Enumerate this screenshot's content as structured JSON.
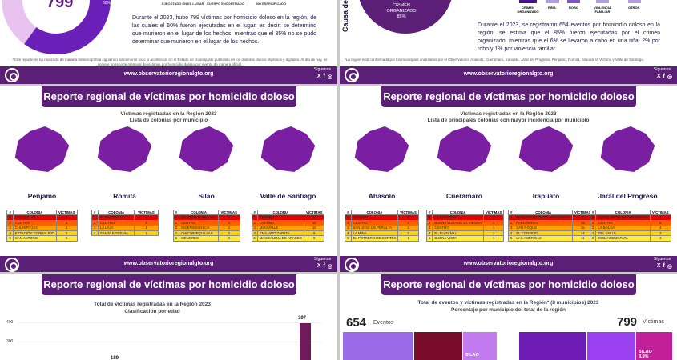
{
  "footer": {
    "url": "www.observatorioregionalgto.org",
    "follow": "Síguenos",
    "social": [
      "X",
      "f",
      "◎"
    ]
  },
  "top_left": {
    "big_number": "799",
    "pct": "60%",
    "labels": [
      "EJECUTADO EN EL LUGAR",
      "CUERPO ENCONTRADO",
      "NO ESPECIFICADO"
    ],
    "para": "Durante el 2023, hubo 799 víctimas por homicidio doloso en la región, de las cuales el 60% fueron ejecutadas en el lugar, es decir; se determino que murieron en el lugar de los hechos, mientras que el 35% no se pudo determinar que murieron en el lugar de los hechos.",
    "note": "*Este reporte se ha realizado de manera hemerográfica siguiendo diariamente todo lo acontecido en el Estado de Guanajuato publicado en los distintos diarios impresos y digitales. Al día de hoy, se somete un reporte mensual de víctimas por homicidio doloso por evento de manera oficial."
  },
  "top_right": {
    "axis_title": "Causa de",
    "pie_label": "CRIMEN ORGANIZADO 85%",
    "legend": [
      "CRIMEN ORGANIZADO",
      "RIÑA",
      "ROBO",
      "VIOLENCIA FAMILIAR",
      "OTROS"
    ],
    "para": "Durante el 2023, se registraron 654 eventos por homicidio doloso en la región, se estima que el 85% fueron ejecutadas por el crimen organizado, mientras que el 6% se llevaron a cabo en una riña, 2% por robo y 1% por violencia familiar.",
    "note": "*La región está conformada por los municipios analizados por el Observatorio: Abasolo, Cuerámaro, Irapuato, Jaral del Progreso, Pénjamo, Romita, Silao de la Victoria y Valle de Santiago."
  },
  "report_title": "Reporte regional de víctimas por homicidio doloso",
  "mid_left": {
    "subtitle1": "Víctimas registradas en la Región 2023",
    "subtitle2": "Lista de colonias por municipio",
    "munis": [
      {
        "name": "Pénjamo",
        "rows": [
          [
            "1",
            "SAN MIGUEL",
            "9"
          ],
          [
            "2",
            "CENTRO",
            "8"
          ],
          [
            "3",
            "CHURIPITZEO",
            "5"
          ],
          [
            "4",
            "ESTACIÓN CORRALEJO",
            "5"
          ],
          [
            "5",
            "SAN ANTONIO",
            "5"
          ]
        ]
      },
      {
        "name": "Romita",
        "rows": [
          [
            "1",
            "EL ESCOBILLO",
            "3"
          ],
          [
            "2",
            "CENTRO",
            "2"
          ],
          [
            "3",
            "LA LAJA",
            "1"
          ],
          [
            "4",
            "SANTA EFIGENIA",
            "1"
          ]
        ]
      },
      {
        "name": "Silao",
        "rows": [
          [
            "1",
            "BAJÍO DE BONILLAS",
            "7"
          ],
          [
            "2",
            "CENTRO",
            "4"
          ],
          [
            "3",
            "INDEPENDENCIA",
            "4"
          ],
          [
            "4",
            "CHICHIMEQUILLAS",
            "3"
          ],
          [
            "5",
            "MENORES",
            "3"
          ]
        ]
      },
      {
        "name": "Valle de Santiago",
        "rows": [
          [
            "1",
            "CENTRO",
            "20"
          ],
          [
            "2",
            "LA LOMA",
            "10"
          ],
          [
            "3",
            "MIRAVALLE",
            "10"
          ],
          [
            "4",
            "EMILIANO ZAPATA",
            "9"
          ],
          [
            "5",
            "MAGDALENA DE ARACEO",
            "9"
          ]
        ]
      }
    ]
  },
  "mid_right": {
    "subtitle1": "Víctimas registradas en la Región 2023",
    "subtitle2": "Lista de principales colonias con mayor incidencia por municipio",
    "munis": [
      {
        "name": "Abasolo",
        "rows": [
          [
            "1",
            "MANTAS",
            "6"
          ],
          [
            "2",
            "CENTRO",
            "4"
          ],
          [
            "3",
            "SAN JOSÉ DE PERALTA",
            "3"
          ],
          [
            "4",
            "LA MINA",
            "2"
          ],
          [
            "5",
            "EL POTRERO DE CORTÉS",
            "1"
          ]
        ]
      },
      {
        "name": "Cuerámaro",
        "rows": [
          [
            "1",
            "LA SOLEDAD",
            "3"
          ],
          [
            "2",
            "BUENA VISTA DE LA VÍBORA",
            "1"
          ],
          [
            "3",
            "CENTRO",
            "1"
          ],
          [
            "4",
            "EL PLATANAL",
            "1"
          ],
          [
            "5",
            "BUENA VISTA",
            "1"
          ]
        ]
      },
      {
        "name": "Irapuato",
        "rows": [
          [
            "1",
            "CONSTITUCIÓN DE APATZINGÁN",
            "15"
          ],
          [
            "2",
            "PARDIÑARES",
            "15"
          ],
          [
            "3",
            "SAN ROQUE",
            "15"
          ],
          [
            "4",
            "EL CONSEJO",
            "14"
          ],
          [
            "5",
            "LAS AMÉRICAS",
            "11"
          ]
        ]
      },
      {
        "name": "Jaral del Progreso",
        "rows": [
          [
            "1",
            "JUSTO ORTIZ DE DOMÍNGUEZ",
            "7"
          ],
          [
            "2",
            "CENTRO",
            "6"
          ],
          [
            "3",
            "LA BOLSA",
            "4"
          ],
          [
            "4",
            "DEL VALLE",
            "3"
          ],
          [
            "5",
            "EMILIANO ZAPATA",
            "3"
          ]
        ]
      }
    ]
  },
  "bottom_left": {
    "subtitle1": "Total de víctimas registradas en la Región 2023",
    "subtitle2": "Clasificación por edad",
    "yticks": [
      "400",
      "300"
    ]
  },
  "bottom_right": {
    "subtitle1": "Total de eventos y víctimas registradas en la Región* (8 municipios) 2023",
    "subtitle2": "Porcentaje por municipio del total de la región",
    "eventos_num": "654",
    "eventos_lbl": "Eventos",
    "victimas_num": "799",
    "victimas_lbl": "Víctimas",
    "tile_label": "SILAO",
    "tile_label2": "SILAO 8.9%"
  },
  "table_header": [
    "#",
    "COLONIA",
    "VÍCTIMAS"
  ],
  "chart_data": {
    "type": "bar",
    "title": "Total de víctimas registradas en la Región 2023",
    "subtitle": "Clasificación por edad",
    "ylim": [
      0,
      400
    ],
    "yticks": [
      300,
      400
    ],
    "data_labels": [
      189,
      397
    ],
    "values": [
      189,
      397
    ]
  }
}
